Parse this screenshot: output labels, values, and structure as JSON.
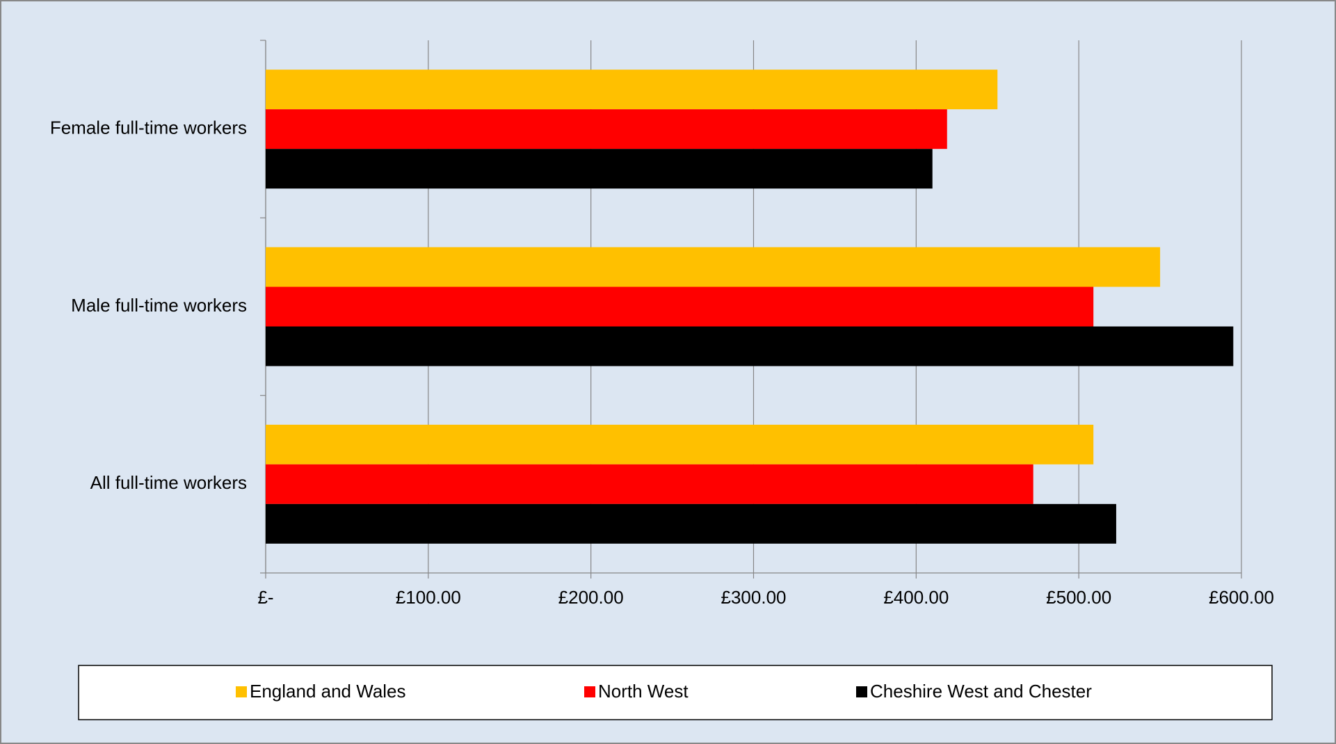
{
  "chart_data": {
    "type": "bar",
    "orientation": "horizontal",
    "categories": [
      "Female full-time workers",
      "Male full-time workers",
      "All full-time workers"
    ],
    "series": [
      {
        "name": "England and Wales",
        "color": "#ffc000",
        "values": [
          450,
          550,
          509
        ]
      },
      {
        "name": "North West",
        "color": "#ff0000",
        "values": [
          419,
          509,
          472
        ]
      },
      {
        "name": "Cheshire West and Chester",
        "color": "#000000",
        "values": [
          410,
          595,
          523
        ]
      }
    ],
    "xlim": [
      0,
      600
    ],
    "xticks": [
      {
        "value": 0,
        "label": "£-"
      },
      {
        "value": 100,
        "label": "£100.00"
      },
      {
        "value": 200,
        "label": "£200.00"
      },
      {
        "value": 300,
        "label": "£300.00"
      },
      {
        "value": 400,
        "label": "£400.00"
      },
      {
        "value": 500,
        "label": "£500.00"
      },
      {
        "value": 600,
        "label": "£600.00"
      }
    ],
    "grid": true,
    "legend": "bottom"
  }
}
